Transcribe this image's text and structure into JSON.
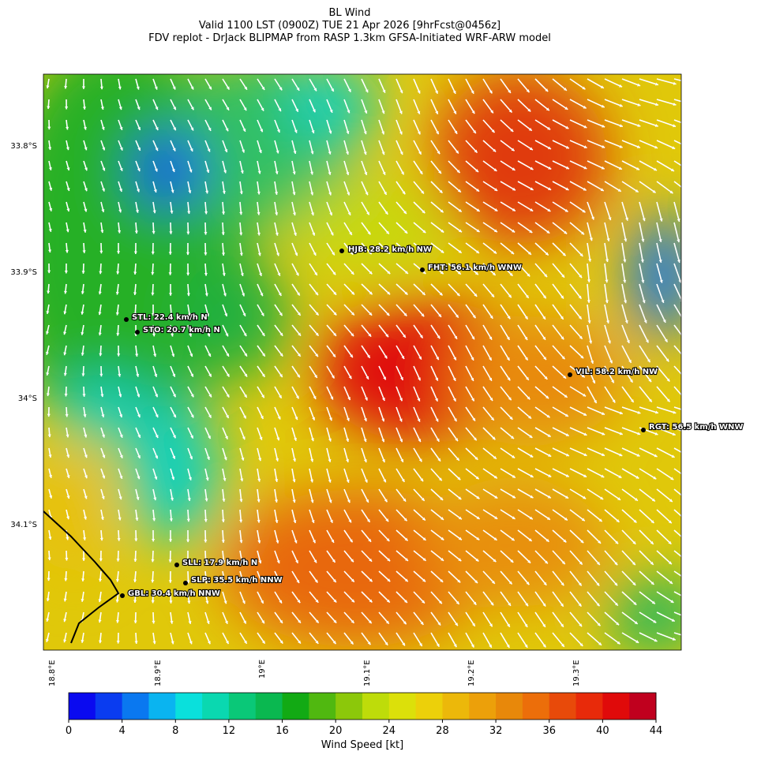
{
  "header": {
    "title": "BL Wind",
    "valid": "Valid 1100 LST (0900Z) TUE 21 Apr 2026 [9hrFcst@0456z]",
    "model": "FDV replot - DrJack BLIPMAP from RASP 1.3km GFSA-Initiated WRF-ARW model"
  },
  "map": {
    "lat_ticks": [
      "33.8°S",
      "33.9°S",
      "34°S",
      "34.1°S"
    ],
    "lon_ticks": [
      "18.8°E",
      "18.9°E",
      "19°E",
      "19.1°E",
      "19.2°E",
      "19.3°E"
    ],
    "stations": [
      "STL: 22.4 km/h N",
      "STO: 20.7 km/h N",
      "HJB: 28.2 km/h NW",
      "FHT: 56.1 km/h WNW",
      "VIL: 58.2 km/h NW",
      "RGT: 56.5 km/h WNW",
      "SLL: 17.9 km/h N",
      "SLP: 35.5 km/h NNW",
      "GBL: 30.4 km/h NNW"
    ]
  },
  "colorbar": {
    "label": "Wind Speed [kt]",
    "lim": [
      0,
      44
    ],
    "ticks": [
      0,
      4,
      8,
      12,
      16,
      20,
      24,
      28,
      32,
      36,
      40,
      44
    ],
    "colors": [
      "#0a0af0",
      "#0a3cf0",
      "#0a78f0",
      "#0ab4f0",
      "#0ae0dc",
      "#0ad8b0",
      "#0ac878",
      "#0ab850",
      "#12aa14",
      "#50b810",
      "#8cc80a",
      "#bedc0a",
      "#dce00a",
      "#ecd00a",
      "#ecb80a",
      "#eca00a",
      "#e8880a",
      "#ec6e0a",
      "#e84a0a",
      "#e82a0a",
      "#e00a0a",
      "#c0001e"
    ]
  }
}
